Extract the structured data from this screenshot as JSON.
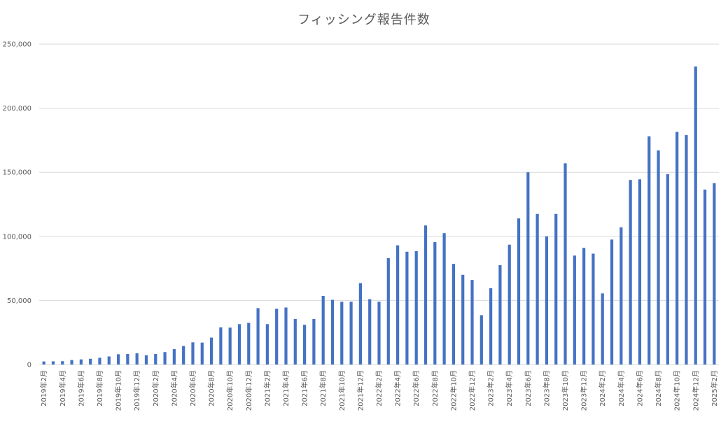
{
  "chart_data": {
    "type": "bar",
    "title": "フィッシング報告件数",
    "xlabel": "",
    "ylabel": "",
    "ylim": [
      0,
      250000
    ],
    "yticks": [
      0,
      50000,
      100000,
      150000,
      200000,
      250000
    ],
    "ytick_labels": [
      "0",
      "50,000",
      "100,000",
      "150,000",
      "200,000",
      "250,000"
    ],
    "grid": true,
    "color": "#4472c4",
    "categories": [
      "2019年2月",
      "2019年3月",
      "2019年4月",
      "2019年5月",
      "2019年6月",
      "2019年7月",
      "2019年8月",
      "2019年9月",
      "2019年10月",
      "2019年11月",
      "2019年12月",
      "2020年1月",
      "2020年2月",
      "2020年3月",
      "2020年4月",
      "2020年5月",
      "2020年6月",
      "2020年7月",
      "2020年8月",
      "2020年9月",
      "2020年10月",
      "2020年11月",
      "2020年12月",
      "2021年1月",
      "2021年2月",
      "2021年3月",
      "2021年4月",
      "2021年5月",
      "2021年6月",
      "2021年7月",
      "2021年8月",
      "2021年9月",
      "2021年10月",
      "2021年11月",
      "2021年12月",
      "2022年1月",
      "2022年2月",
      "2022年3月",
      "2022年4月",
      "2022年5月",
      "2022年6月",
      "2022年7月",
      "2022年8月",
      "2022年9月",
      "2022年10月",
      "2022年11月",
      "2022年12月",
      "2023年1月",
      "2023年2月",
      "2023年3月",
      "2023年4月",
      "2023年5月",
      "2023年6月",
      "2023年7月",
      "2023年8月",
      "2023年9月",
      "2023年10月",
      "2023年11月",
      "2023年12月",
      "2024年1月",
      "2024年2月",
      "2024年3月",
      "2024年4月",
      "2024年5月",
      "2024年6月",
      "2024年7月",
      "2024年8月",
      "2024年9月",
      "2024年10月",
      "2024年11月",
      "2024年12月",
      "2025年1月",
      "2025年2月"
    ],
    "visible_tick_labels": [
      "2019年2月",
      "2019年4月",
      "2019年6月",
      "2019年8月",
      "2019年10月",
      "2019年12月",
      "2020年2月",
      "2020年4月",
      "2020年6月",
      "2020年8月",
      "2020年10月",
      "2020年12月",
      "2021年2月",
      "2021年4月",
      "2021年6月",
      "2021年8月",
      "2021年10月",
      "2021年12月",
      "2022年2月",
      "2022年4月",
      "2022年6月",
      "2022年8月",
      "2022年10月",
      "2022年12月",
      "2023年2月",
      "2023年4月",
      "2023年6月",
      "2023年8月",
      "2023年10月",
      "2023年12月",
      "2024年2月",
      "2024年4月",
      "2024年6月",
      "2024年8月",
      "2024年10月",
      "2024年12月",
      "2025年2月"
    ],
    "values": [
      2400,
      2500,
      2600,
      3500,
      4000,
      4500,
      5300,
      6300,
      8000,
      8200,
      8800,
      7300,
      8200,
      9700,
      12000,
      14500,
      17300,
      17100,
      21000,
      29000,
      28800,
      31500,
      32500,
      44000,
      31500,
      43500,
      44500,
      35500,
      31000,
      35500,
      53500,
      50500,
      49000,
      49000,
      63500,
      51000,
      49000,
      83000,
      93000,
      88000,
      88500,
      108500,
      95500,
      102500,
      78500,
      70000,
      66000,
      38500,
      59500,
      77500,
      93500,
      114000,
      150000,
      117500,
      100000,
      117500,
      157000,
      85000,
      91000,
      86500,
      55500,
      97500,
      107000,
      144000,
      144500,
      178000,
      167000,
      148500,
      181500,
      179000,
      232500,
      136500,
      141500
    ]
  }
}
